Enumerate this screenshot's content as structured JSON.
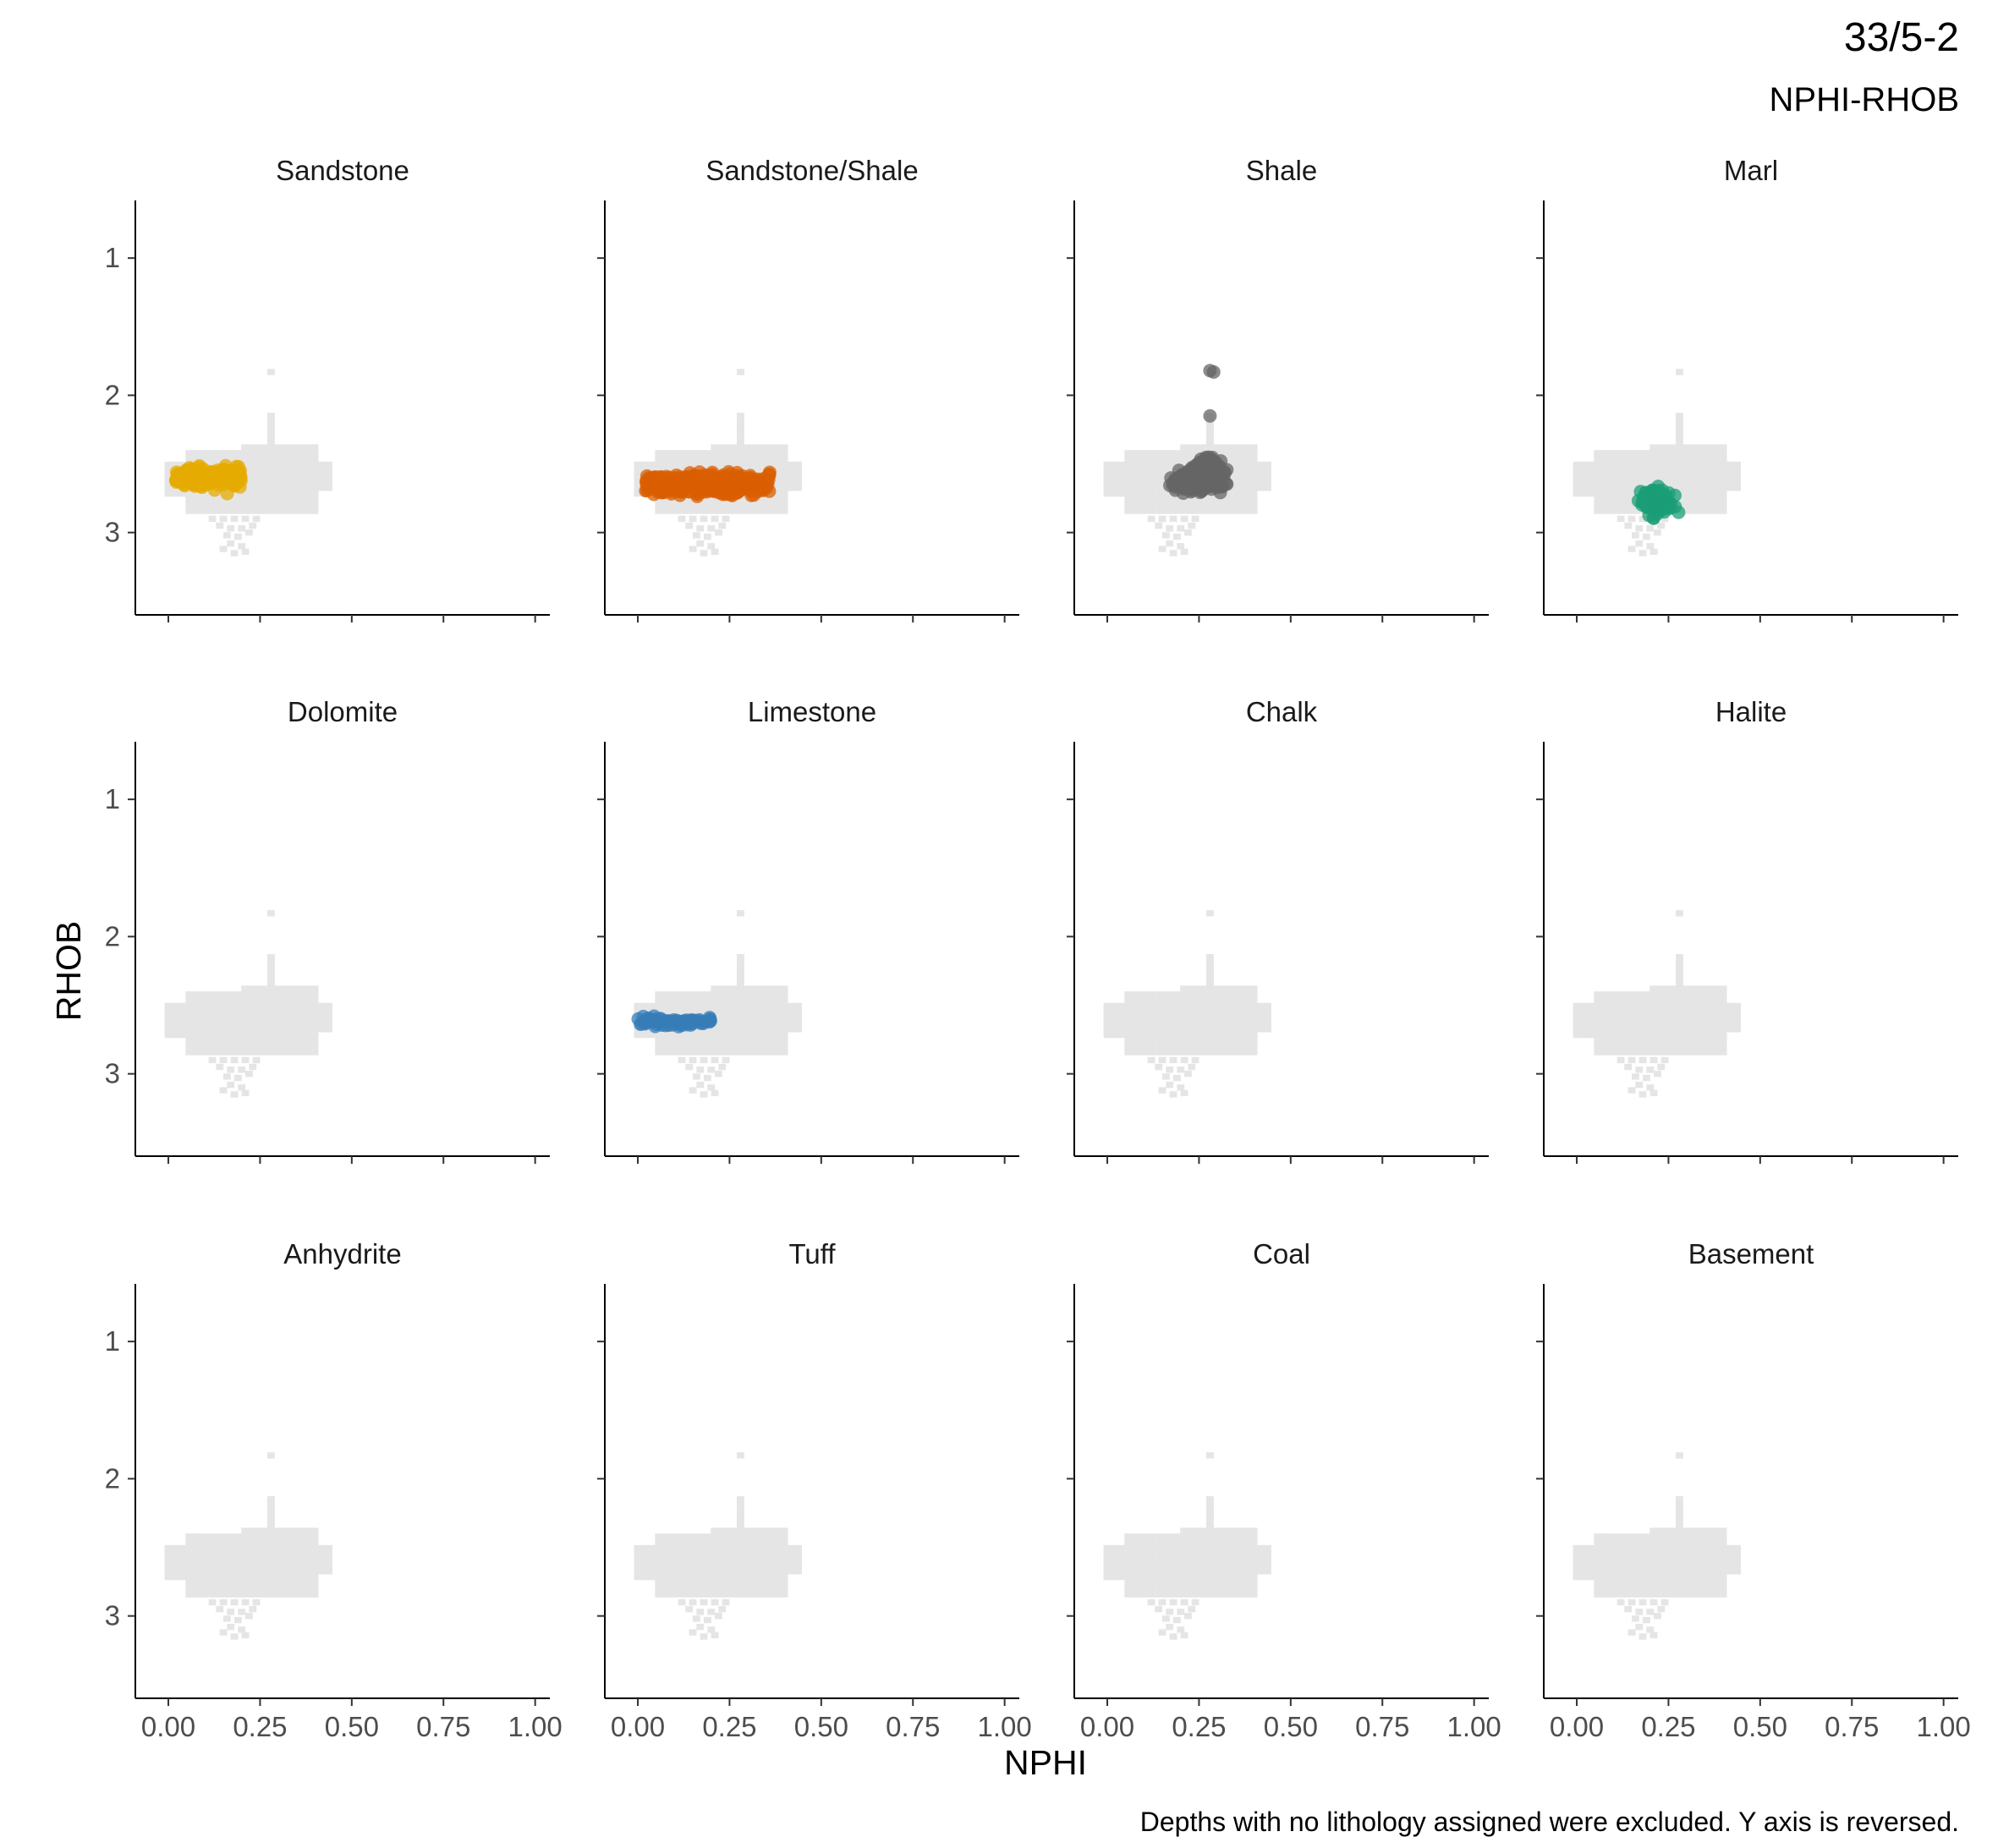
{
  "title": "33/5-2",
  "subtitle": "NPHI-RHOB",
  "caption": "Depths with no lithology assigned were excluded. Y axis is reversed.",
  "chart_data": {
    "type": "scatter",
    "facets": [
      "Sandstone",
      "Sandstone/Shale",
      "Shale",
      "Marl",
      "Dolomite",
      "Limestone",
      "Chalk",
      "Halite",
      "Anhydrite",
      "Tuff",
      "Coal",
      "Basement"
    ],
    "xlabel": "NPHI",
    "ylabel": "RHOB",
    "xlim": [
      -0.09,
      1.04
    ],
    "ylim": [
      3.6,
      0.58
    ],
    "y_reversed": true,
    "x_ticks": [
      0.0,
      0.25,
      0.5,
      0.75,
      1.0
    ],
    "x_tick_labels": [
      "0.00",
      "0.25",
      "0.50",
      "0.75",
      "1.00"
    ],
    "y_ticks": [
      1,
      2,
      3
    ],
    "y_tick_labels": [
      "1",
      "2",
      "3"
    ],
    "grid": false,
    "legend": "none",
    "background_color": "#e5e5e5",
    "background_extent": {
      "main_nphi": [
        0.0,
        0.44
      ],
      "main_rhob": [
        2.4,
        2.85
      ],
      "tail_nphi": [
        0.15,
        0.25
      ],
      "tail_rhob": [
        2.85,
        3.15
      ],
      "outlier": [
        0.28,
        1.83
      ]
    },
    "series": [
      {
        "lithology": "Sandstone",
        "color": "#e6ab02",
        "nphi_range": [
          0.02,
          0.2
        ],
        "rhob_range": [
          2.38,
          2.8
        ],
        "center": [
          0.1,
          2.6
        ]
      },
      {
        "lithology": "Sandstone/Shale",
        "color": "#d95f02",
        "nphi_range": [
          0.02,
          0.36
        ],
        "rhob_range": [
          2.48,
          2.93
        ],
        "center": [
          0.15,
          2.65
        ]
      },
      {
        "lithology": "Shale",
        "color": "#666666",
        "nphi_range": [
          0.05,
          0.42
        ],
        "rhob_range": [
          1.82,
          2.85
        ],
        "center": [
          0.25,
          2.68
        ]
      },
      {
        "lithology": "Marl",
        "color": "#1b9e77",
        "nphi_range": [
          0.1,
          0.37
        ],
        "rhob_range": [
          2.48,
          3.16
        ],
        "center": [
          0.22,
          2.8
        ]
      },
      {
        "lithology": "Limestone",
        "color": "#377eb8",
        "nphi_range": [
          0.0,
          0.2
        ],
        "rhob_range": [
          2.55,
          2.72
        ],
        "center": [
          0.1,
          2.62
        ]
      }
    ]
  }
}
